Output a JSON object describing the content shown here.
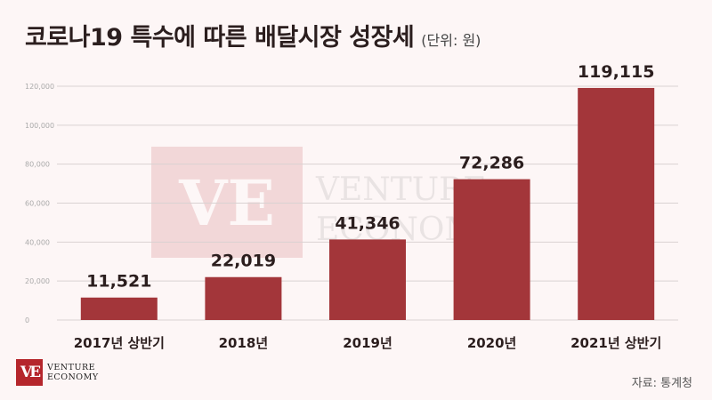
{
  "title": "코로나19 특수에 따른 배달시장 성장세",
  "unit": "(단위: 원)",
  "source": "자료: 통계청",
  "logo": {
    "mark": "VE",
    "line1": "VENTURE",
    "line2": "ECONOMY"
  },
  "colors": {
    "bar": "#a3363a",
    "background": "#fdf6f6",
    "grid": "#d9d2d2"
  },
  "chart_data": {
    "type": "bar",
    "categories": [
      "2017년 상반기",
      "2018년",
      "2019년",
      "2020년",
      "2021년 상반기"
    ],
    "values": [
      11521,
      22019,
      41346,
      72286,
      119115
    ],
    "value_labels": [
      "11,521",
      "22,019",
      "41,346",
      "72,286",
      "119,115"
    ],
    "title": "코로나19 특수에 따른 배달시장 성장세",
    "ylim": [
      0,
      120000
    ],
    "yticks": [
      0,
      20000,
      40000,
      60000,
      80000,
      100000,
      120000
    ],
    "ytick_labels": [
      "0",
      "20,000",
      "40,000",
      "60,000",
      "80,000",
      "100,000",
      "120,000"
    ],
    "grid": true,
    "legend": "none"
  }
}
